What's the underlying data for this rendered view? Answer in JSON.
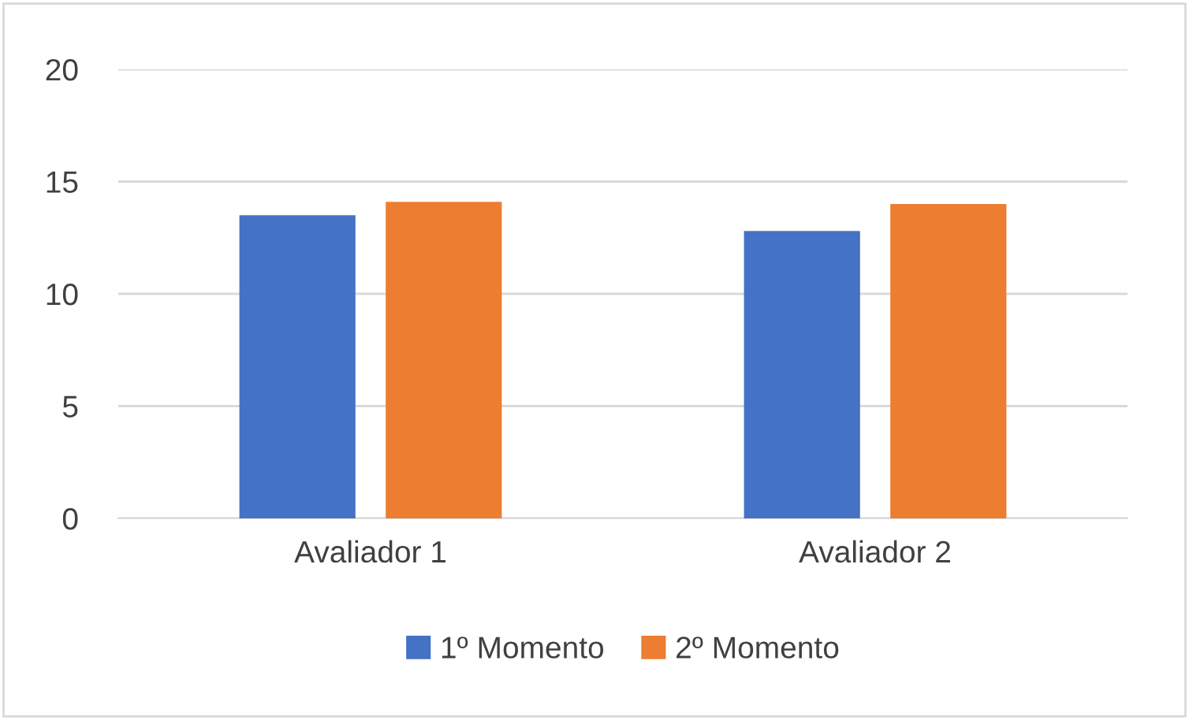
{
  "chart_data": {
    "type": "bar",
    "categories": [
      "Avaliador 1",
      "Avaliador 2"
    ],
    "series": [
      {
        "name": "1º Momento",
        "color": "#4472c4",
        "values": [
          13.5,
          12.8
        ]
      },
      {
        "name": "2º Momento",
        "color": "#ed7d31",
        "values": [
          14.1,
          14.0
        ]
      }
    ],
    "ylim": [
      0,
      20
    ],
    "yticks": [
      0,
      5,
      10,
      15,
      20
    ],
    "grid": "y",
    "legend": "bottom"
  }
}
